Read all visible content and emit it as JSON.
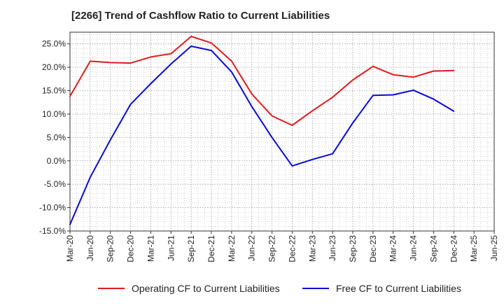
{
  "title": "[2266]  Trend of Cashflow Ratio to Current Liabilities",
  "chart_data": {
    "type": "line",
    "title": "[2266]  Trend of Cashflow Ratio to Current Liabilities",
    "xlabel": "",
    "ylabel": "",
    "categories": [
      "Mar-20",
      "Jun-20",
      "Sep-20",
      "Dec-20",
      "Mar-21",
      "Jun-21",
      "Sep-21",
      "Dec-21",
      "Mar-22",
      "Jun-22",
      "Sep-22",
      "Dec-22",
      "Mar-23",
      "Jun-23",
      "Sep-23",
      "Dec-23",
      "Mar-24",
      "Jun-24",
      "Sep-24",
      "Dec-24",
      "Mar-25",
      "Jun-25"
    ],
    "ylim": [
      -15,
      27.5
    ],
    "yticks": [
      -15,
      -10,
      -5,
      0,
      5,
      10,
      15,
      20,
      25
    ],
    "ytick_labels": [
      "-15.0%",
      "-10.0%",
      "-5.0%",
      "0.0%",
      "5.0%",
      "10.0%",
      "15.0%",
      "20.0%",
      "25.0%"
    ],
    "grid": true,
    "legend_position": "bottom",
    "series": [
      {
        "name": "Operating CF to Current Liabilities",
        "color": "#e31a1c",
        "values": [
          13.8,
          21.3,
          21.0,
          20.9,
          22.2,
          22.9,
          26.6,
          25.2,
          21.3,
          14.3,
          9.6,
          7.6,
          10.7,
          13.6,
          17.3,
          20.2,
          18.4,
          17.9,
          19.2,
          19.3,
          null,
          null
        ]
      },
      {
        "name": "Free CF to Current Liabilities",
        "color": "#0a0ad8",
        "values": [
          -13.6,
          -3.5,
          4.5,
          12.1,
          16.5,
          20.7,
          24.5,
          23.6,
          19.0,
          11.6,
          5.0,
          -1.1,
          0.3,
          1.5,
          8.1,
          14.0,
          14.1,
          15.1,
          13.2,
          10.6,
          null,
          null
        ]
      }
    ]
  },
  "legend": {
    "items": [
      {
        "label": "Operating CF to Current Liabilities",
        "color": "#e31a1c"
      },
      {
        "label": "Free CF to Current Liabilities",
        "color": "#0a0ad8"
      }
    ]
  }
}
